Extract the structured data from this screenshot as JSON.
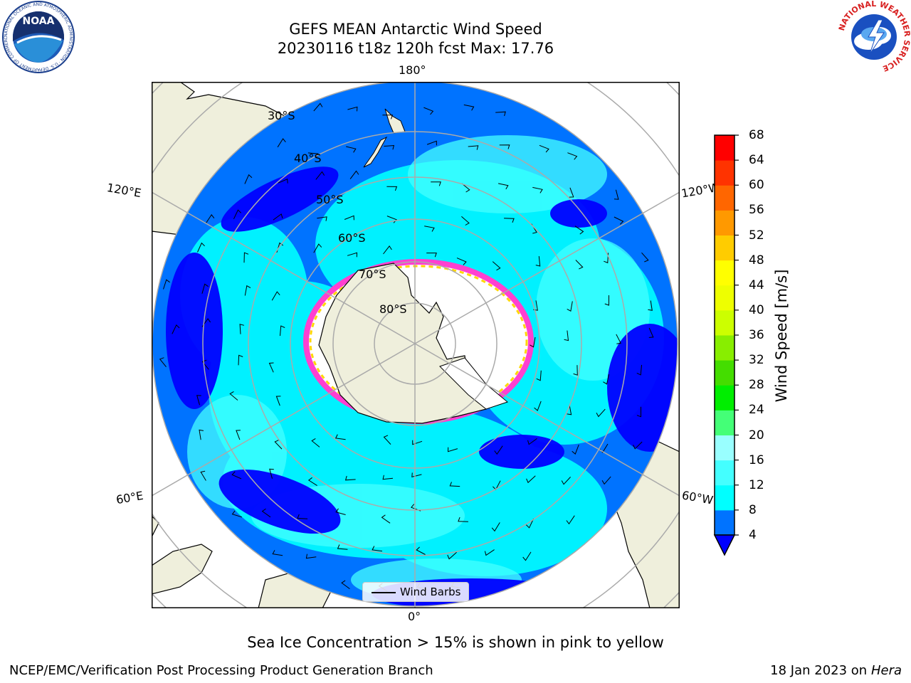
{
  "title": {
    "line1": "GEFS MEAN Antarctic Wind Speed",
    "line2": "20230116 t18z 120h fcst   Max: 17.76"
  },
  "map": {
    "meridian_labels": {
      "top": "180°",
      "upper_left": "120°E",
      "upper_right": "120°W",
      "lower_left": "60°E",
      "lower_right": "60°W",
      "bottom": "0°"
    },
    "latitude_labels": [
      "30°S",
      "40°S",
      "50°S",
      "60°S",
      "70°S",
      "80°S"
    ],
    "legend_label": "Wind Barbs"
  },
  "colorbar": {
    "label": "Wind Speed [m/s]",
    "ticks": [
      "68",
      "64",
      "60",
      "56",
      "52",
      "48",
      "44",
      "40",
      "36",
      "32",
      "28",
      "24",
      "20",
      "16",
      "12",
      "8",
      "4"
    ],
    "colors": [
      "#0000ff",
      "#0073ff",
      "#00ffff",
      "#44ffff",
      "#99ffff",
      "#44ff77",
      "#00ee00",
      "#44dd00",
      "#88ee00",
      "#ccff00",
      "#eeff00",
      "#ffff00",
      "#ffcc00",
      "#ff9900",
      "#ff6600",
      "#ff3300",
      "#ff0000"
    ]
  },
  "caption": "Sea Ice Concentration > 15% is shown in pink to yellow",
  "footer": {
    "left": "NCEP/EMC/Verification Post Processing Product Generation Branch",
    "right_prefix": "18 Jan 2023 on ",
    "right_machine": "Hera"
  },
  "logos": {
    "left": "NOAA",
    "left_ring": "NATIONAL OCEANIC AND ATMOSPHERIC ADMINISTRATION · U.S. DEPARTMENT OF COMMERCE",
    "right_ring": "NATIONAL WEATHER SERVICE"
  },
  "colors": {
    "land": "#efefdc",
    "ocean_deep": "#0000ff",
    "ocean_mid": "#0073ff",
    "ocean_light": "#00ffff",
    "gridline": "#aaaaaa"
  }
}
